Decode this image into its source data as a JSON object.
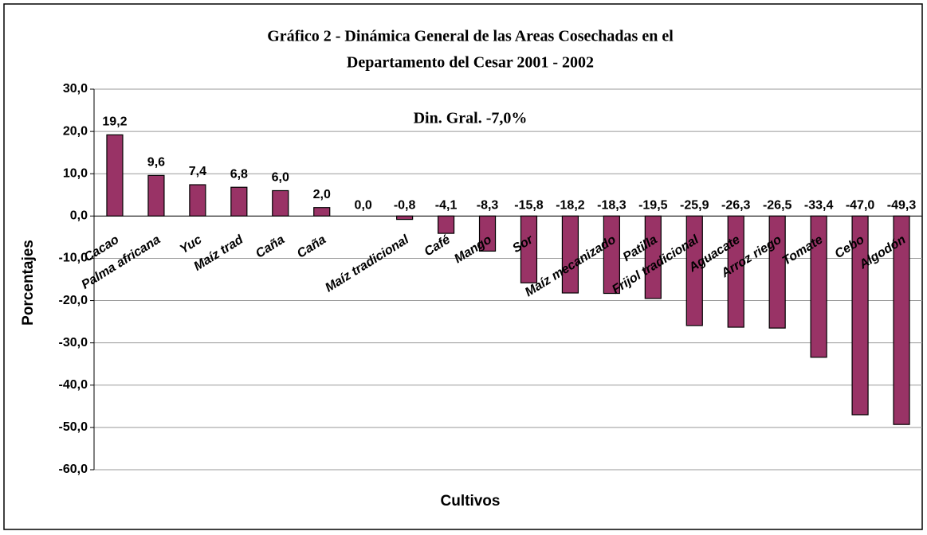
{
  "chart_data": {
    "type": "bar",
    "title": [
      "Gráfico 2 - Dinámica General de las Areas Cosechadas en el",
      "Departamento del Cesar 2001 - 2002"
    ],
    "annotation": "Din. Gral. -7,0%",
    "x_label": "Cultivos",
    "y_label": "Porcentajes",
    "categories": [
      "Cacao",
      "Palma africana",
      "Yuc",
      "Maíz trad",
      "Caña",
      "Caña",
      null,
      "Maíz tradicional",
      "Café",
      "Mango",
      "Sor",
      null,
      "Maíz mecanizado",
      "Patilla",
      "Frijol tradicional",
      "Aguacate",
      "Arroz riego",
      "Tomate",
      "Cebo",
      "Algodón"
    ],
    "values": [
      19.2,
      9.6,
      7.4,
      6.8,
      6.0,
      2.0,
      0.0,
      -0.8,
      -4.1,
      -8.3,
      -15.8,
      -18.2,
      -18.3,
      -19.5,
      -25.9,
      -26.3,
      -26.5,
      -33.4,
      -47.0,
      -49.3
    ],
    "value_labels": [
      "19,2",
      "9,6",
      "7,4",
      "6,8",
      "6,0",
      "2,0",
      "0,0",
      "-0,8",
      "-4,1",
      "-8,3",
      "-15,8",
      "-18,2",
      "-18,3",
      "-19,5",
      "-25,9",
      "-26,3",
      "-26,5",
      "-33,4",
      "-47,0",
      "-49,3"
    ],
    "color": "#993366",
    "ylim": [
      -60,
      30
    ],
    "yticks": [
      {
        "value": -60,
        "label": "-60,0"
      },
      {
        "value": -50,
        "label": "-50,0"
      },
      {
        "value": -40,
        "label": "-40,0"
      },
      {
        "value": -30,
        "label": "-30,0"
      },
      {
        "value": -20,
        "label": "-20,0"
      },
      {
        "value": -10,
        "label": "-10,0"
      },
      {
        "value": 0,
        "label": "0,0"
      },
      {
        "value": 10,
        "label": "10,0"
      },
      {
        "value": 20,
        "label": "20,0"
      },
      {
        "value": 30,
        "label": "30,0"
      }
    ],
    "grid": true
  }
}
